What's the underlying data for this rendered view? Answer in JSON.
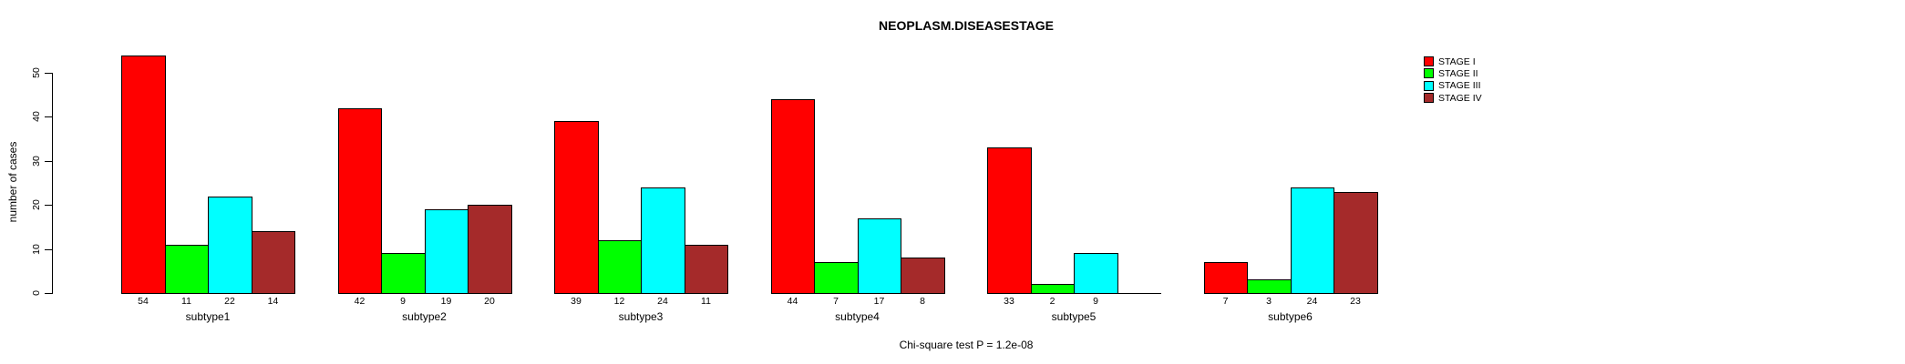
{
  "chart_data": {
    "type": "bar",
    "title": "NEOPLASM.DISEASESTAGE",
    "ylabel": "number of cases",
    "xlabel": "",
    "annotation": "Chi-square test P = 1.2e-08",
    "categories": [
      "subtype1",
      "subtype2",
      "subtype3",
      "subtype4",
      "subtype5",
      "subtype6"
    ],
    "series": [
      {
        "name": "STAGE I",
        "color": "#ff0000",
        "values": [
          54,
          42,
          39,
          44,
          33,
          7
        ]
      },
      {
        "name": "STAGE II",
        "color": "#00ff00",
        "values": [
          11,
          9,
          12,
          7,
          2,
          3
        ]
      },
      {
        "name": "STAGE III",
        "color": "#00ffff",
        "values": [
          22,
          19,
          24,
          17,
          9,
          24
        ]
      },
      {
        "name": "STAGE IV",
        "color": "#a52a2a",
        "values": [
          14,
          20,
          11,
          8,
          0,
          23
        ]
      }
    ],
    "y_ticks": [
      0,
      10,
      20,
      30,
      40,
      50
    ],
    "ylim": [
      0,
      56
    ],
    "grid": false,
    "legend_position": "inside-top-right",
    "bar_value_labels_shown": true,
    "zero_values_unlabeled": true
  }
}
